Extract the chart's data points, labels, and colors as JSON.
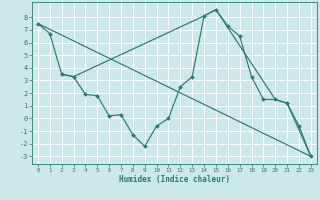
{
  "background_color": "#cce8e8",
  "grid_color": "#ffffff",
  "line_color": "#2d7a6a",
  "xlabel": "Humidex (Indice chaleur)",
  "xlim": [
    -0.5,
    23.5
  ],
  "ylim": [
    -3.6,
    9.2
  ],
  "xticks": [
    0,
    1,
    2,
    3,
    4,
    5,
    6,
    7,
    8,
    9,
    10,
    11,
    12,
    13,
    14,
    15,
    16,
    17,
    18,
    19,
    20,
    21,
    22,
    23
  ],
  "yticks": [
    -3,
    -2,
    -1,
    0,
    1,
    2,
    3,
    4,
    5,
    6,
    7,
    8
  ],
  "line1_x": [
    0,
    1,
    2,
    3,
    4,
    5,
    6,
    7,
    8,
    9,
    10,
    11,
    12,
    13,
    14,
    15,
    16,
    17,
    18,
    19,
    20,
    21,
    22,
    23
  ],
  "line1_y": [
    7.5,
    6.7,
    3.5,
    3.3,
    1.9,
    1.8,
    0.2,
    0.3,
    -1.3,
    -2.2,
    -0.6,
    0.0,
    2.5,
    3.3,
    8.1,
    8.6,
    7.3,
    6.5,
    3.3,
    1.5,
    1.5,
    1.2,
    -0.6,
    -3.0
  ],
  "line2_x": [
    0,
    23
  ],
  "line2_y": [
    7.5,
    -3.0
  ],
  "line3_x": [
    2,
    3,
    14,
    15,
    20,
    21,
    23
  ],
  "line3_y": [
    3.5,
    3.3,
    8.1,
    8.6,
    1.5,
    1.2,
    -3.0
  ]
}
